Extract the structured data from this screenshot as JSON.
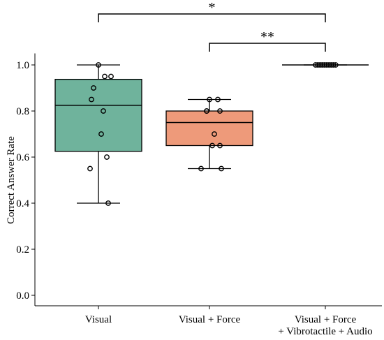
{
  "chart_data": {
    "type": "box",
    "title": "",
    "xlabel": "",
    "ylabel": "Correct Answer Rate",
    "ylim": [
      -0.04,
      1.05
    ],
    "yticks": [
      0.0,
      0.2,
      0.4,
      0.6,
      0.8,
      1.0
    ],
    "ytick_labels": [
      "0.0",
      "0.2",
      "0.4",
      "0.6",
      "0.8",
      "1.0"
    ],
    "grid": false,
    "categories": [
      [
        "Visual"
      ],
      [
        "Visual + Force"
      ],
      [
        "Visual + Force",
        "+ Vibrotactile + Audio"
      ]
    ],
    "boxes": [
      {
        "color": "#6fb39c",
        "whisker_low": 0.4,
        "q1": 0.625,
        "median": 0.825,
        "q3": 0.9375,
        "whisker_high": 1.0,
        "points": [
          1.0,
          0.95,
          0.95,
          0.9,
          0.85,
          0.8,
          0.7,
          0.6,
          0.55,
          0.4
        ]
      },
      {
        "color": "#ee9a7a",
        "whisker_low": 0.55,
        "q1": 0.65,
        "median": 0.75,
        "q3": 0.8,
        "whisker_high": 0.85,
        "points": [
          0.85,
          0.85,
          0.8,
          0.8,
          0.8,
          0.7,
          0.65,
          0.65,
          0.55,
          0.55
        ]
      },
      {
        "color": "#8da0cb",
        "whisker_low": 1.0,
        "q1": 1.0,
        "median": 1.0,
        "q3": 1.0,
        "whisker_high": 1.0,
        "points": [
          1.0,
          1.0,
          1.0,
          1.0,
          1.0,
          1.0,
          1.0,
          1.0,
          1.0,
          1.0
        ]
      }
    ],
    "significance": [
      {
        "from": 0,
        "to": 2,
        "label": "*"
      },
      {
        "from": 1,
        "to": 2,
        "label": "**"
      }
    ]
  }
}
